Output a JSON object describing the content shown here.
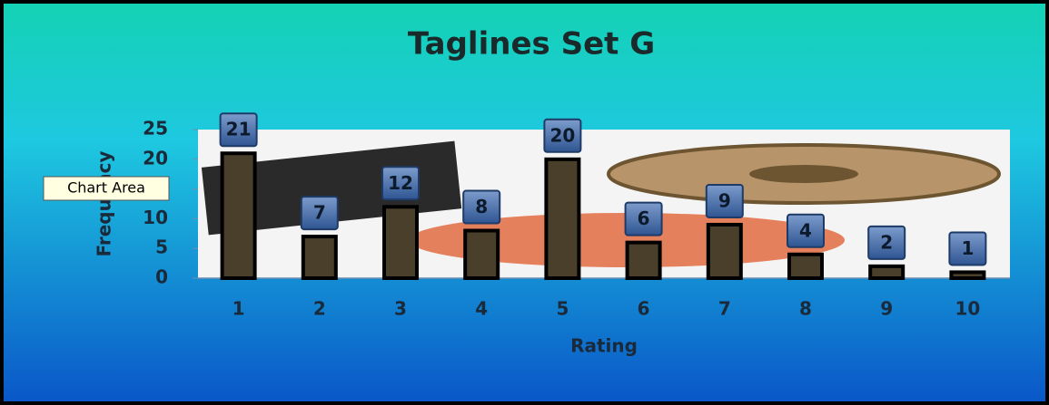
{
  "chart_data": {
    "type": "bar",
    "title": "Taglines Set G",
    "x_label": "Rating",
    "y_label": "Frequency",
    "categories": [
      "1",
      "2",
      "3",
      "4",
      "5",
      "6",
      "7",
      "8",
      "9",
      "10"
    ],
    "values": [
      21,
      7,
      12,
      8,
      20,
      6,
      9,
      4,
      2,
      1
    ],
    "color": "#4a3f2a",
    "ylim": [
      0,
      25
    ],
    "yticks": [
      0,
      5,
      10,
      15,
      20,
      25
    ],
    "grid": false,
    "tooltip": "Chart Area"
  }
}
